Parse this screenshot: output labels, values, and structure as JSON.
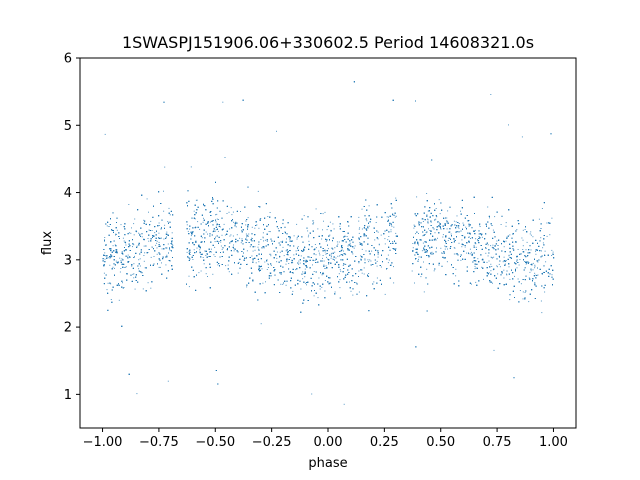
{
  "chart_data": {
    "type": "scatter",
    "title": "1SWASPJ151906.06+330602.5 Period 14608321.0s",
    "xlabel": "phase",
    "ylabel": "flux",
    "xlim": [
      -1.1,
      1.1
    ],
    "ylim": [
      0.5,
      6.0
    ],
    "grid": false,
    "marker_color": "#1f77b4",
    "xticks": [
      -1.0,
      -0.75,
      -0.5,
      -0.25,
      0.0,
      0.25,
      0.5,
      0.75,
      1.0
    ],
    "xtick_labels": [
      "−1.00",
      "−0.75",
      "−0.50",
      "−0.25",
      "0.00",
      "0.25",
      "0.50",
      "0.75",
      "1.00"
    ],
    "yticks": [
      1,
      2,
      3,
      4,
      5,
      6
    ],
    "ytick_labels": [
      "1",
      "2",
      "3",
      "4",
      "5",
      "6"
    ],
    "phase_folded": true,
    "flux_profile": {
      "phase": [
        0.0,
        0.1,
        0.2,
        0.3,
        0.4,
        0.5,
        0.6,
        0.7,
        0.8,
        0.9,
        1.0
      ],
      "median_flux": [
        3.0,
        3.1,
        3.2,
        3.3,
        3.3,
        3.4,
        3.3,
        3.2,
        3.1,
        3.0,
        3.0
      ]
    },
    "flux_range": [
      0.8,
      5.7
    ],
    "main_band": [
      2.3,
      4.3
    ]
  }
}
